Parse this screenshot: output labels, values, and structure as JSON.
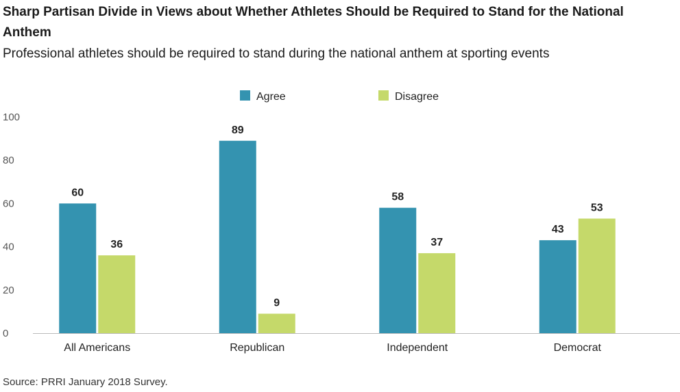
{
  "header": {
    "title": "Sharp Partisan Divide in Views about Whether Athletes Should be Required to Stand for the National Anthem",
    "subtitle": "Professional athletes should be required to stand during the national anthem at sporting events"
  },
  "footer": {
    "source": "Source: PRRI January 2018 Survey."
  },
  "chart_data": {
    "type": "bar",
    "title": "Sharp Partisan Divide in Views about Whether Athletes Should be Required to Stand for the National Anthem",
    "subtitle": "Professional athletes should be required to stand during the national anthem at sporting events",
    "categories": [
      "All Americans",
      "Republican",
      "Independent",
      "Democrat"
    ],
    "series": [
      {
        "name": "Agree",
        "color": "#3493b0",
        "values": [
          60,
          89,
          58,
          43
        ]
      },
      {
        "name": "Disagree",
        "color": "#c5d96a",
        "values": [
          36,
          9,
          37,
          53
        ]
      }
    ],
    "ylim": [
      0,
      100
    ],
    "yticks": [
      0,
      20,
      40,
      60,
      80,
      100
    ],
    "xlabel": "",
    "ylabel": "",
    "grid": false,
    "legend_position": "top-center"
  }
}
